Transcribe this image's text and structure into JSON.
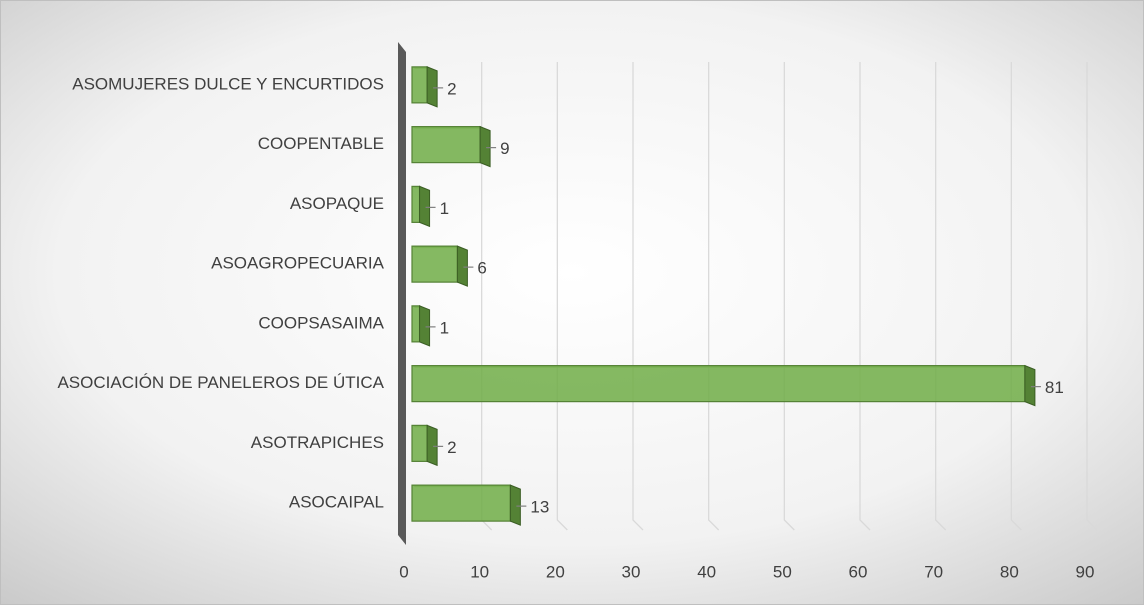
{
  "chart_data": {
    "type": "bar",
    "orientation": "horizontal",
    "categories": [
      "ASOMUJERES DULCE Y ENCURTIDOS",
      "COOPENTABLE",
      "ASOPAQUE",
      "ASOAGROPECUARIA",
      "COOPSASAIMA",
      "ASOCIACIÓN DE PANELEROS DE ÚTICA",
      "ASOTRAPICHES",
      "ASOCAIPAL"
    ],
    "values": [
      2,
      9,
      1,
      6,
      1,
      81,
      2,
      13
    ],
    "color": "#70ad47",
    "xlim": [
      0,
      90
    ],
    "xticks": [
      0,
      10,
      20,
      30,
      40,
      50,
      60,
      70,
      80,
      90
    ],
    "grid": true
  }
}
